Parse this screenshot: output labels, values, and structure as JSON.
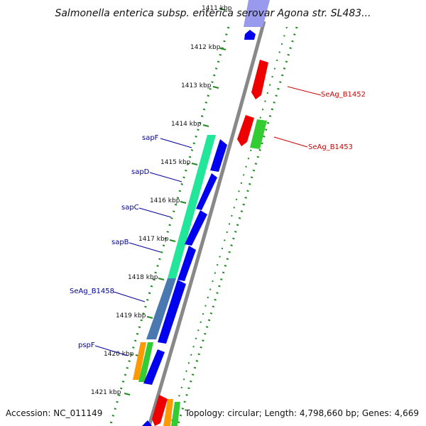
{
  "title": "Salmonella enterica subsp. enterica serovar Agona str. SL483...",
  "accession": "Accession: NC_011149",
  "summary": "Topology: circular; Length: 4,798,660 bp; Genes: 4,669",
  "ticks": [
    {
      "label": "1411 kbp"
    },
    {
      "label": "1412 kbp"
    },
    {
      "label": "1413 kbp"
    },
    {
      "label": "1414 kbp"
    },
    {
      "label": "1415 kbp"
    },
    {
      "label": "1416 kbp"
    },
    {
      "label": "1417 kbp"
    },
    {
      "label": "1418 kbp"
    },
    {
      "label": "1419 kbp"
    },
    {
      "label": "1420 kbp"
    },
    {
      "label": "1421 kbp"
    }
  ],
  "gene_labels_left": [
    "sapF",
    "sapD",
    "sapC",
    "sapB",
    "SeAg_B1458",
    "pspF"
  ],
  "gene_labels_right": [
    "SeAg_B1452",
    "SeAg_B1453"
  ],
  "colors": {
    "backbone": "#888888",
    "dots": "#1f8a1f",
    "cds_forward": "#0000ee",
    "cds_reverse": "#ee0000",
    "left_label": "#000099",
    "right_label": "#cc0000",
    "cog_teal": "#22e69a",
    "cog_steelblue": "#4a78b0",
    "cog_orange": "#ff9900",
    "cog_green": "#33cc33"
  }
}
